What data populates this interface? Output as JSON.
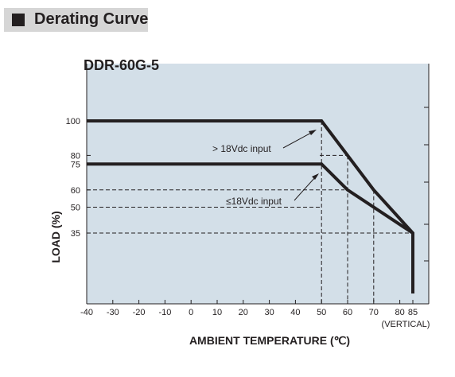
{
  "section": {
    "title": "Derating Curve"
  },
  "chart_data": {
    "type": "line",
    "title": "DDR-60G-5",
    "xlabel": "AMBIENT TEMPERATURE (℃)",
    "ylabel": "LOAD (%)",
    "x_ticks": [
      "-40",
      "-30",
      "-20",
      "-10",
      "0",
      "10",
      "20",
      "30",
      "40",
      "50",
      "60",
      "70",
      "80",
      "85"
    ],
    "x_tick_note": "(VERTICAL)",
    "y_ticks": [
      "100",
      "80",
      "75",
      "60",
      "50",
      "35"
    ],
    "xlim": [
      -40,
      85
    ],
    "ylim": [
      0,
      100
    ],
    "series": [
      {
        "name": "> 18Vdc input",
        "x": [
          -40,
          50,
          70,
          85,
          85
        ],
        "y": [
          100,
          100,
          60,
          35,
          0
        ]
      },
      {
        "name": "≤18Vdc input",
        "x": [
          -40,
          50,
          60,
          85
        ],
        "y": [
          75,
          75,
          60,
          35
        ]
      }
    ],
    "annotations": [
      "> 18Vdc input",
      "≤18Vdc input"
    ],
    "fill_color": "#d3dfe8"
  }
}
